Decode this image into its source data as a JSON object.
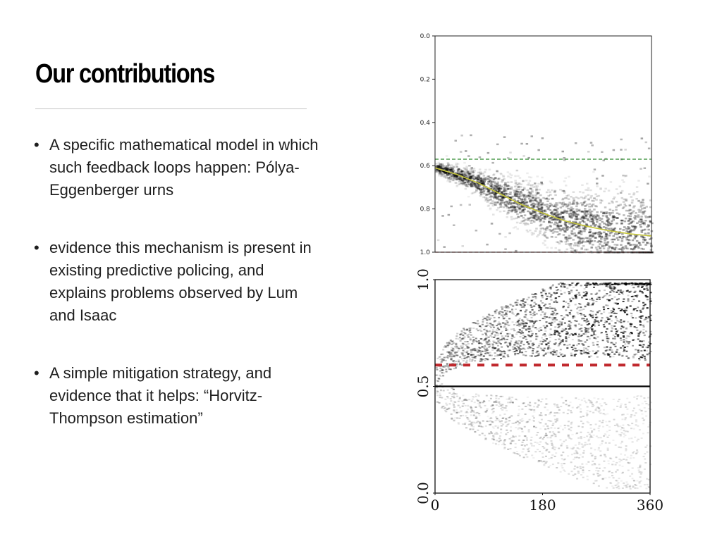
{
  "slide": {
    "title": "Our contributions",
    "bullet_glyph": "•",
    "bullets": [
      "A specific mathematical model in which such feedback loops happen: Pólya-Eggenberger urns",
      "evidence this mechanism is present in existing predictive policing, and explains problems observed by Lum and Isaac",
      "A simple mitigation strategy, and evidence that it helps: “Horvitz-Thompson estimation”"
    ]
  },
  "chart_data": [
    {
      "type": "heatmap",
      "title": "",
      "xlabel": "",
      "ylabel": "",
      "y_ticks": [
        "0.0",
        "0.2",
        "0.4",
        "0.6",
        "0.8",
        "1.0"
      ],
      "ylim": [
        0.0,
        1.0
      ],
      "y_inverted": true,
      "x_ticks": [],
      "grid": false,
      "series": [
        {
          "kind": "mean-curve",
          "color": "#c8c83c",
          "x": [
            0,
            0.1,
            0.2,
            0.3,
            0.4,
            0.5,
            0.6,
            0.7,
            0.8,
            0.9,
            1.0
          ],
          "y": [
            0.61,
            0.64,
            0.68,
            0.73,
            0.78,
            0.82,
            0.855,
            0.88,
            0.9,
            0.915,
            0.925
          ]
        },
        {
          "kind": "reference-line",
          "color": "#2e8b2e",
          "y": 0.57
        },
        {
          "kind": "reference-line",
          "color": "#b03030",
          "y": 1.0
        }
      ]
    },
    {
      "type": "heatmap",
      "title": "",
      "xlabel": "",
      "ylabel": "",
      "y_ticks": [
        "0.0",
        "0.5",
        "1.0"
      ],
      "ylim": [
        0.0,
        1.0
      ],
      "x_ticks": [
        "0",
        "180",
        "360"
      ],
      "xlim": [
        0,
        360
      ],
      "grid": false,
      "series": [
        {
          "kind": "reference-line",
          "color": "#c0282d",
          "dashed": true,
          "y": 0.6
        },
        {
          "kind": "reference-line",
          "color": "#000000",
          "y": 0.5
        }
      ]
    }
  ]
}
